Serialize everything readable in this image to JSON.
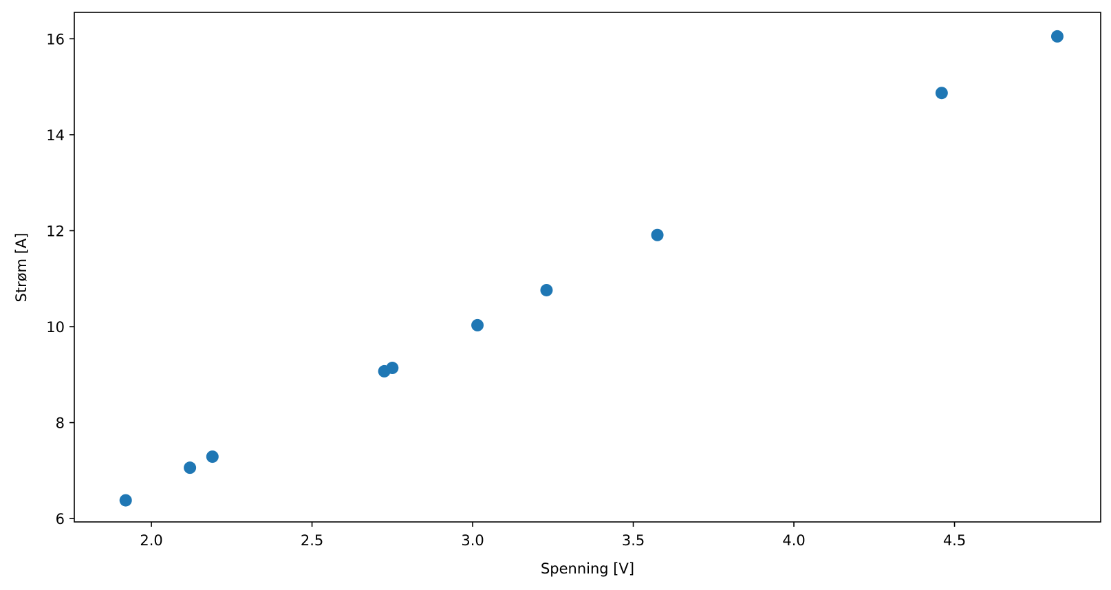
{
  "chart_data": {
    "type": "scatter",
    "title": "",
    "xlabel": "Spenning [V]",
    "ylabel": "Strøm [A]",
    "xlim": [
      1.76,
      4.955
    ],
    "ylim": [
      5.93,
      16.55
    ],
    "xticks": [
      2.0,
      2.5,
      3.0,
      3.5,
      4.0,
      4.5
    ],
    "xtick_labels": [
      "2.0",
      "2.5",
      "3.0",
      "3.5",
      "4.0",
      "4.5"
    ],
    "yticks": [
      6,
      8,
      10,
      12,
      14,
      16
    ],
    "ytick_labels": [
      "6",
      "8",
      "10",
      "12",
      "14",
      "16"
    ],
    "grid": false,
    "legend": false,
    "marker_color": "#1f77b4",
    "series": [
      {
        "x": [
          1.92,
          2.12,
          2.19,
          2.725,
          2.75,
          3.015,
          3.23,
          3.575,
          4.46,
          4.82
        ],
        "y": [
          6.38,
          7.06,
          7.29,
          9.07,
          9.14,
          10.03,
          10.76,
          11.91,
          14.87,
          16.05
        ]
      }
    ]
  }
}
